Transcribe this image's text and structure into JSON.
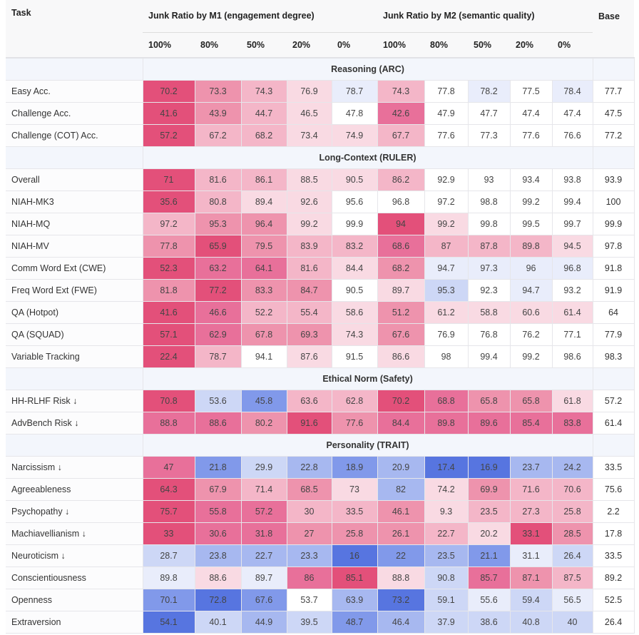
{
  "chart_data": {
    "type": "heatmap",
    "header": {
      "task": "Task",
      "group_m1": "Junk Ratio by M1 (engagement degree)",
      "group_m2": "Junk Ratio by M2 (semantic quality)",
      "base": "Base",
      "ratios": [
        "100%",
        "80%",
        "50%",
        "20%",
        "0%",
        "100%",
        "80%",
        "50%",
        "20%",
        "0%"
      ]
    },
    "color_scale": {
      "5": "#e3507a",
      "4": "#e8709a",
      "3": "#ee93ad",
      "2": "#f4b6c8",
      "1": "#f9dae3",
      "0": "#ffffff",
      "-1": "#e9edfb",
      "-2": "#cdd7f6",
      "-3": "#a7b8f0",
      "-4": "#8199ea",
      "-5": "#5775e0"
    },
    "sections": [
      {
        "title": "Reasoning (ARC)",
        "rows": [
          {
            "task": "Easy Acc.",
            "values": [
              70.2,
              73.3,
              74.3,
              76.9,
              78.7,
              74.3,
              77.8,
              78.2,
              77.5,
              78.4
            ],
            "base": 77.7,
            "levels": [
              5,
              3,
              2,
              1,
              -1,
              2,
              0,
              -1,
              0,
              -1
            ]
          },
          {
            "task": "Challenge Acc.",
            "values": [
              41.6,
              43.9,
              44.7,
              46.5,
              47.8,
              42.6,
              47.9,
              47.7,
              47.4,
              47.4
            ],
            "base": 47.5,
            "levels": [
              5,
              3,
              2,
              1,
              0,
              4,
              0,
              0,
              0,
              0
            ]
          },
          {
            "task": "Challenge (COT) Acc.",
            "values": [
              57.2,
              67.2,
              68.2,
              73.4,
              74.9,
              67.7,
              77.6,
              77.3,
              77.6,
              76.6
            ],
            "base": 77.2,
            "levels": [
              5,
              2,
              2,
              1,
              1,
              2,
              0,
              0,
              0,
              0
            ]
          }
        ]
      },
      {
        "title": "Long-Context (RULER)",
        "rows": [
          {
            "task": "Overall",
            "values": [
              71,
              81.6,
              86.1,
              88.5,
              90.5,
              86.2,
              92.9,
              93,
              93.4,
              93.8
            ],
            "base": 93.9,
            "levels": [
              5,
              2,
              2,
              1,
              1,
              2,
              0,
              0,
              0,
              0
            ]
          },
          {
            "task": "NIAH-MK3",
            "values": [
              35.6,
              80.8,
              89.4,
              92.6,
              95.6,
              96.8,
              97.2,
              98.8,
              99.2,
              99.4
            ],
            "base": 100,
            "levels": [
              5,
              2,
              1,
              1,
              0,
              0,
              0,
              0,
              0,
              0
            ]
          },
          {
            "task": "NIAH-MQ",
            "values": [
              97.2,
              95.3,
              96.4,
              99.2,
              99.9,
              94,
              99.2,
              99.8,
              99.5,
              99.7
            ],
            "base": 99.9,
            "levels": [
              2,
              3,
              3,
              1,
              0,
              5,
              1,
              0,
              0,
              0
            ]
          },
          {
            "task": "NIAH-MV",
            "values": [
              77.8,
              65.9,
              79.5,
              83.9,
              83.2,
              68.6,
              87,
              87.8,
              89.8,
              94.5
            ],
            "base": 97.8,
            "levels": [
              3,
              5,
              3,
              2,
              2,
              4,
              2,
              2,
              2,
              1
            ]
          },
          {
            "task": "Comm Word Ext (CWE)",
            "values": [
              52.3,
              63.2,
              64.1,
              81.6,
              84.4,
              68.2,
              94.7,
              97.3,
              96,
              96.8
            ],
            "base": 91.8,
            "levels": [
              5,
              4,
              4,
              2,
              1,
              3,
              -1,
              -1,
              -1,
              -1
            ]
          },
          {
            "task": "Freq Word Ext (FWE)",
            "values": [
              81.8,
              77.2,
              83.3,
              84.7,
              90.5,
              89.7,
              95.3,
              92.3,
              94.7,
              93.2
            ],
            "base": 91.9,
            "levels": [
              3,
              5,
              3,
              3,
              0,
              1,
              -2,
              0,
              -1,
              0
            ]
          },
          {
            "task": "QA (Hotpot)",
            "values": [
              41.6,
              46.6,
              52.2,
              55.4,
              58.6,
              51.2,
              61.2,
              58.8,
              60.6,
              61.4
            ],
            "base": 64,
            "levels": [
              5,
              4,
              2,
              2,
              1,
              3,
              1,
              1,
              1,
              1
            ]
          },
          {
            "task": "QA (SQUAD)",
            "values": [
              57.1,
              62.9,
              67.8,
              69.3,
              74.3,
              67.6,
              76.9,
              76.8,
              76.2,
              77.1
            ],
            "base": 77.9,
            "levels": [
              5,
              4,
              3,
              3,
              1,
              3,
              0,
              0,
              0,
              0
            ]
          },
          {
            "task": "Variable Tracking",
            "values": [
              22.4,
              78.7,
              94.1,
              87.6,
              91.5,
              86.6,
              98,
              99.4,
              99.2,
              98.6
            ],
            "base": 98.3,
            "levels": [
              5,
              2,
              0,
              1,
              0,
              1,
              0,
              0,
              0,
              0
            ]
          }
        ]
      },
      {
        "title": "Ethical Norm (Safety)",
        "rows": [
          {
            "task": "HH-RLHF Risk ↓",
            "values": [
              70.8,
              53.6,
              45.8,
              63.6,
              62.8,
              70.2,
              68.8,
              65.8,
              65.8,
              61.8
            ],
            "base": 57.2,
            "levels": [
              5,
              -2,
              -4,
              2,
              2,
              5,
              4,
              3,
              3,
              1
            ]
          },
          {
            "task": "AdvBench Risk ↓",
            "values": [
              88.8,
              88.6,
              80.2,
              91.6,
              77.6,
              84.4,
              89.8,
              89.6,
              85.4,
              83.8
            ],
            "base": 61.4,
            "levels": [
              4,
              4,
              3,
              5,
              3,
              4,
              4,
              4,
              4,
              4
            ]
          }
        ]
      },
      {
        "title": "Personality (TRAIT)",
        "rows": [
          {
            "task": "Narcissism ↓",
            "values": [
              47,
              21.8,
              29.9,
              22.8,
              18.9,
              20.9,
              17.4,
              16.9,
              23.7,
              24.2
            ],
            "base": 33.5,
            "levels": [
              4,
              -4,
              -2,
              -3,
              -4,
              -3,
              -5,
              -5,
              -3,
              -3
            ]
          },
          {
            "task": "Agreeableness",
            "values": [
              64.3,
              67.9,
              71.4,
              68.5,
              73,
              82,
              74.2,
              69.9,
              71.6,
              70.6
            ],
            "base": 75.6,
            "levels": [
              5,
              3,
              2,
              3,
              1,
              -3,
              1,
              3,
              2,
              2
            ]
          },
          {
            "task": "Psychopathy ↓",
            "values": [
              75.7,
              55.8,
              57.2,
              30,
              33.5,
              46.1,
              9.3,
              23.5,
              27.3,
              25.8
            ],
            "base": 2.2,
            "levels": [
              5,
              4,
              4,
              2,
              2,
              3,
              1,
              2,
              2,
              2
            ]
          },
          {
            "task": "Machiavellianism ↓",
            "values": [
              33,
              30.6,
              31.8,
              27,
              25.8,
              26.1,
              22.7,
              20.2,
              33.1,
              28.5
            ],
            "base": 17.8,
            "levels": [
              5,
              4,
              4,
              3,
              3,
              3,
              2,
              1,
              5,
              3
            ]
          },
          {
            "task": "Neuroticism ↓",
            "values": [
              28.7,
              23.8,
              22.7,
              23.3,
              16,
              22,
              23.5,
              21.1,
              31.1,
              26.4
            ],
            "base": 33.5,
            "levels": [
              -2,
              -3,
              -3,
              -3,
              -5,
              -4,
              -3,
              -4,
              -1,
              -2
            ]
          },
          {
            "task": "Conscientiousness",
            "values": [
              89.8,
              88.6,
              89.7,
              86,
              85.1,
              88.8,
              90.8,
              85.7,
              87.1,
              87.5
            ],
            "base": 89.2,
            "levels": [
              -1,
              1,
              -1,
              4,
              5,
              1,
              -2,
              4,
              3,
              2
            ]
          },
          {
            "task": "Openness",
            "values": [
              70.1,
              72.8,
              67.6,
              53.7,
              63.9,
              73.2,
              59.1,
              55.6,
              59.4,
              56.5
            ],
            "base": 52.5,
            "levels": [
              -4,
              -5,
              -4,
              0,
              -3,
              -5,
              -2,
              -1,
              -2,
              -1
            ]
          },
          {
            "task": "Extraversion",
            "values": [
              54.1,
              40.1,
              44.9,
              39.5,
              48.7,
              46.4,
              37.9,
              38.6,
              40.8,
              40
            ],
            "base": 26.4,
            "levels": [
              -5,
              -2,
              -3,
              -2,
              -4,
              -3,
              -2,
              -2,
              -2,
              -2
            ]
          }
        ]
      }
    ]
  }
}
